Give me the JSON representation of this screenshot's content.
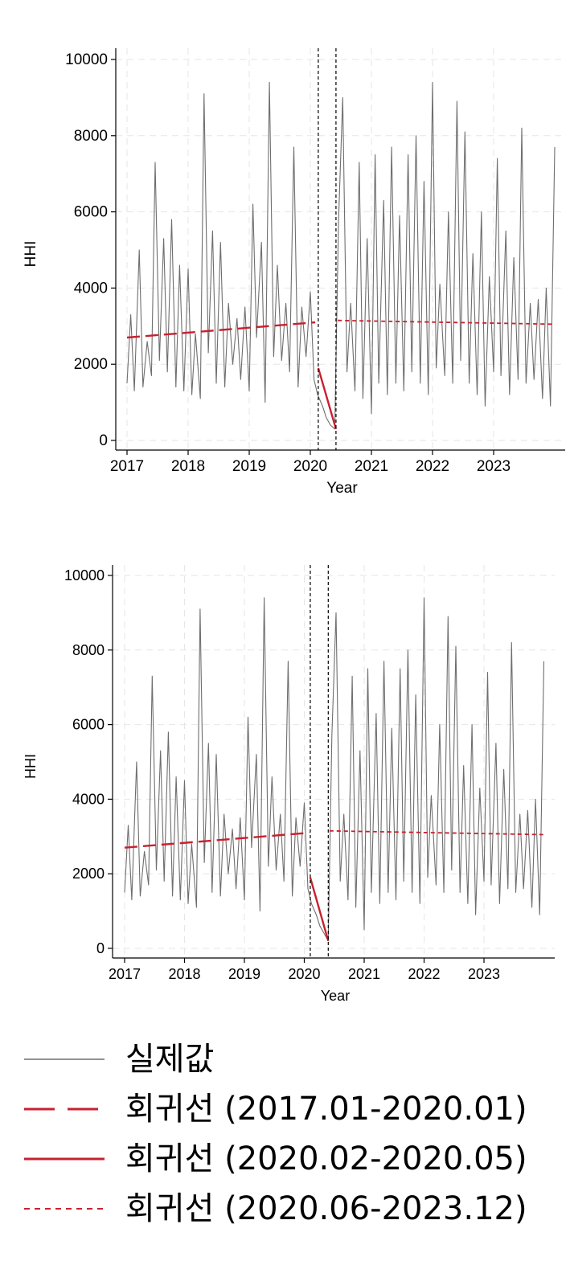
{
  "chart_data": [
    {
      "type": "line",
      "xlabel": "Year",
      "ylabel": "HHI",
      "xlim": [
        2017,
        2024.1
      ],
      "ylim": [
        0,
        10000
      ],
      "x_ticks": [
        "2017",
        "2018",
        "2019",
        "2020",
        "2021",
        "2022",
        "2023"
      ],
      "y_ticks": [
        "0",
        "2000",
        "4000",
        "6000",
        "8000",
        "10000"
      ],
      "grid": true,
      "reference_lines_x": [
        2020.13,
        2020.42
      ],
      "series": [
        {
          "name": "실제값",
          "style": "solid-thin-gray",
          "x": [
            2017.0,
            2017.06,
            2017.12,
            2017.2,
            2017.26,
            2017.33,
            2017.4,
            2017.46,
            2017.53,
            2017.6,
            2017.66,
            2017.73,
            2017.8,
            2017.86,
            2017.93,
            2018.0,
            2018.06,
            2018.12,
            2018.2,
            2018.26,
            2018.33,
            2018.4,
            2018.46,
            2018.53,
            2018.6,
            2018.66,
            2018.73,
            2018.8,
            2018.86,
            2018.93,
            2019.0,
            2019.06,
            2019.12,
            2019.2,
            2019.26,
            2019.33,
            2019.4,
            2019.46,
            2019.53,
            2019.6,
            2019.66,
            2019.73,
            2019.8,
            2019.86,
            2019.93,
            2020.0,
            2020.06,
            2020.12,
            2020.2,
            2020.26,
            2020.33,
            2020.4,
            2020.46,
            2020.53,
            2020.6,
            2020.66,
            2020.73,
            2020.8,
            2020.86,
            2020.93,
            2021.0,
            2021.06,
            2021.12,
            2021.2,
            2021.26,
            2021.33,
            2021.4,
            2021.46,
            2021.53,
            2021.6,
            2021.66,
            2021.73,
            2021.8,
            2021.86,
            2021.93,
            2022.0,
            2022.06,
            2022.12,
            2022.2,
            2022.26,
            2022.33,
            2022.4,
            2022.46,
            2022.53,
            2022.6,
            2022.66,
            2022.73,
            2022.8,
            2022.86,
            2022.93,
            2023.0,
            2023.06,
            2023.12,
            2023.2,
            2023.26,
            2023.33,
            2023.4,
            2023.46,
            2023.53,
            2023.6,
            2023.66,
            2023.73,
            2023.8,
            2023.86,
            2023.93,
            2024.0
          ],
          "y": [
            1500,
            3300,
            1300,
            5000,
            1400,
            2600,
            1700,
            7300,
            2100,
            5300,
            1800,
            5800,
            1400,
            4600,
            1300,
            4500,
            1200,
            2800,
            1100,
            9100,
            2300,
            5500,
            1500,
            5200,
            1400,
            3600,
            2000,
            3200,
            1600,
            3500,
            1300,
            6200,
            2700,
            5200,
            1000,
            9400,
            2200,
            4600,
            2100,
            3600,
            1800,
            7700,
            1400,
            3500,
            2200,
            3900,
            1600,
            1200,
            900,
            600,
            400,
            300,
            5700,
            9000,
            1800,
            3600,
            1300,
            7300,
            1100,
            5300,
            700,
            7500,
            1500,
            6300,
            1200,
            7700,
            1500,
            5900,
            1300,
            7500,
            1800,
            8000,
            1500,
            6800,
            1200,
            9400,
            1900,
            4100,
            1700,
            6000,
            1500,
            8900,
            2100,
            8100,
            1500,
            4900,
            1200,
            6000,
            900,
            4300,
            1800,
            7400,
            1700,
            5500,
            1200,
            4800,
            1600,
            8200,
            1500,
            3600,
            1600,
            3700,
            1100,
            4000,
            900,
            7700
          ]
        },
        {
          "name": "회귀선 (2017.01-2020.01)",
          "style": "long-dash-red",
          "x": [
            2017.0,
            2020.08
          ],
          "y": [
            2700,
            3100
          ]
        },
        {
          "name": "회귀선 (2020.02-2020.05)",
          "style": "solid-red",
          "x": [
            2020.13,
            2020.42
          ],
          "y": [
            1900,
            300
          ]
        },
        {
          "name": "회귀선 (2020.06-2023.12)",
          "style": "short-dash-red",
          "x": [
            2020.45,
            2024.0
          ],
          "y": [
            3150,
            3050
          ]
        }
      ]
    },
    {
      "type": "line",
      "xlabel": "Year",
      "ylabel": "HHI",
      "xlim": [
        2017,
        2024.1
      ],
      "ylim": [
        0,
        10000
      ],
      "x_ticks": [
        "2017",
        "2018",
        "2019",
        "2020",
        "2021",
        "2022",
        "2023"
      ],
      "y_ticks": [
        "0",
        "2000",
        "4000",
        "6000",
        "8000",
        "10000"
      ],
      "grid": true,
      "reference_lines_x": [
        2020.1,
        2020.4
      ],
      "series": [
        {
          "name": "실제값",
          "style": "solid-thin-gray",
          "x": [
            2017.0,
            2017.06,
            2017.12,
            2017.2,
            2017.26,
            2017.33,
            2017.4,
            2017.46,
            2017.53,
            2017.6,
            2017.66,
            2017.73,
            2017.8,
            2017.86,
            2017.93,
            2018.0,
            2018.06,
            2018.12,
            2018.2,
            2018.26,
            2018.33,
            2018.4,
            2018.46,
            2018.53,
            2018.6,
            2018.66,
            2018.73,
            2018.8,
            2018.86,
            2018.93,
            2019.0,
            2019.06,
            2019.12,
            2019.2,
            2019.26,
            2019.33,
            2019.4,
            2019.46,
            2019.53,
            2019.6,
            2019.66,
            2019.73,
            2019.8,
            2019.86,
            2019.93,
            2020.0,
            2020.06,
            2020.12,
            2020.2,
            2020.26,
            2020.33,
            2020.4,
            2020.46,
            2020.53,
            2020.6,
            2020.66,
            2020.73,
            2020.8,
            2020.86,
            2020.93,
            2021.0,
            2021.06,
            2021.12,
            2021.2,
            2021.26,
            2021.33,
            2021.4,
            2021.46,
            2021.53,
            2021.6,
            2021.66,
            2021.73,
            2021.8,
            2021.86,
            2021.93,
            2022.0,
            2022.06,
            2022.12,
            2022.2,
            2022.26,
            2022.33,
            2022.4,
            2022.46,
            2022.53,
            2022.6,
            2022.66,
            2022.73,
            2022.8,
            2022.86,
            2022.93,
            2023.0,
            2023.06,
            2023.12,
            2023.2,
            2023.26,
            2023.33,
            2023.4,
            2023.46,
            2023.53,
            2023.6,
            2023.66,
            2023.73,
            2023.8,
            2023.86,
            2023.93,
            2024.0
          ],
          "y": [
            1500,
            3300,
            1300,
            5000,
            1400,
            2600,
            1700,
            7300,
            2100,
            5300,
            1800,
            5800,
            1400,
            4600,
            1300,
            4500,
            1200,
            2800,
            1100,
            9100,
            2300,
            5500,
            1500,
            5200,
            1400,
            3600,
            2000,
            3200,
            1600,
            3500,
            1300,
            6200,
            2700,
            5200,
            1000,
            9400,
            2200,
            4600,
            2100,
            3600,
            1800,
            7700,
            1400,
            3500,
            2200,
            3900,
            1600,
            1200,
            900,
            600,
            400,
            200,
            5700,
            9000,
            1800,
            3600,
            1300,
            7300,
            1100,
            5300,
            500,
            7500,
            1500,
            6300,
            1200,
            7700,
            1500,
            5900,
            1300,
            7500,
            1800,
            8000,
            1500,
            6800,
            1200,
            9400,
            1900,
            4100,
            1700,
            6000,
            1500,
            8900,
            2100,
            8100,
            1500,
            4900,
            1200,
            6000,
            900,
            4300,
            1800,
            7400,
            1700,
            5500,
            1200,
            4800,
            1600,
            8200,
            1500,
            3600,
            1600,
            3700,
            1100,
            4000,
            900,
            7700
          ]
        },
        {
          "name": "회귀선 (2017.01-2020.01)",
          "style": "long-dash-red",
          "x": [
            2017.0,
            2020.08
          ],
          "y": [
            2700,
            3100
          ]
        },
        {
          "name": "회귀선 (2020.02-2020.05)",
          "style": "solid-red",
          "x": [
            2020.1,
            2020.4
          ],
          "y": [
            1900,
            200
          ]
        },
        {
          "name": "회귀선 (2020.06-2023.12)",
          "style": "short-dash-red",
          "x": [
            2020.42,
            2024.0
          ],
          "y": [
            3150,
            3050
          ]
        }
      ]
    }
  ],
  "legend": {
    "items": [
      {
        "label": "실제값",
        "swatch": "solid-thin-gray"
      },
      {
        "label": "회귀선 (2017.01-2020.01)",
        "swatch": "long-dash-red"
      },
      {
        "label": "회귀선 (2020.02-2020.05)",
        "swatch": "solid-red"
      },
      {
        "label": "회귀선 (2020.06-2023.12)",
        "swatch": "short-dash-red"
      }
    ]
  },
  "colors": {
    "actual": "#6e6e6e",
    "regression": "#c8202f",
    "grid": "#e6e6e6",
    "axis": "#000000"
  }
}
